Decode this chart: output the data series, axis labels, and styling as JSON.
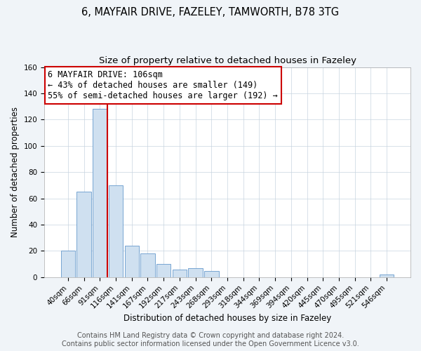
{
  "title": "6, MAYFAIR DRIVE, FAZELEY, TAMWORTH, B78 3TG",
  "subtitle": "Size of property relative to detached houses in Fazeley",
  "xlabel": "Distribution of detached houses by size in Fazeley",
  "ylabel": "Number of detached properties",
  "bar_color": "#cfe0f0",
  "bar_edge_color": "#6699cc",
  "bin_labels": [
    "40sqm",
    "66sqm",
    "91sqm",
    "116sqm",
    "141sqm",
    "167sqm",
    "192sqm",
    "217sqm",
    "243sqm",
    "268sqm",
    "293sqm",
    "318sqm",
    "344sqm",
    "369sqm",
    "394sqm",
    "420sqm",
    "445sqm",
    "470sqm",
    "495sqm",
    "521sqm",
    "546sqm"
  ],
  "bar_heights": [
    20,
    65,
    128,
    70,
    24,
    18,
    10,
    6,
    7,
    5,
    0,
    0,
    0,
    0,
    0,
    0,
    0,
    0,
    0,
    0,
    2
  ],
  "vline_color": "#cc0000",
  "ylim": [
    0,
    160
  ],
  "yticks": [
    0,
    20,
    40,
    60,
    80,
    100,
    120,
    140,
    160
  ],
  "annotation_title": "6 MAYFAIR DRIVE: 106sqm",
  "annotation_line1": "← 43% of detached houses are smaller (149)",
  "annotation_line2": "55% of semi-detached houses are larger (192) →",
  "annotation_box_color": "#ffffff",
  "annotation_box_edge": "#cc0000",
  "footer_line1": "Contains HM Land Registry data © Crown copyright and database right 2024.",
  "footer_line2": "Contains public sector information licensed under the Open Government Licence v3.0.",
  "background_color": "#f0f4f8",
  "plot_background": "#ffffff",
  "title_fontsize": 10.5,
  "subtitle_fontsize": 9.5,
  "axis_label_fontsize": 8.5,
  "tick_fontsize": 7.5,
  "annotation_fontsize": 8.5,
  "footer_fontsize": 7
}
